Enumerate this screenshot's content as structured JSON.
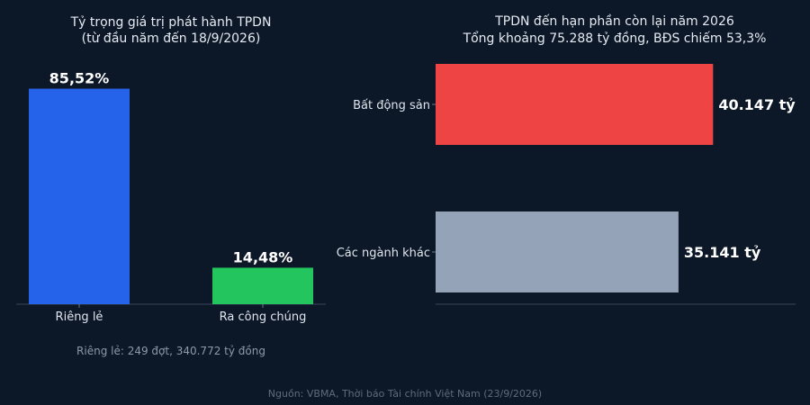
{
  "chart_data": [
    {
      "type": "bar",
      "title": [
        "Tỷ trọng giá trị phát hành TPDN",
        "(từ đầu năm đến 18/9/2026)"
      ],
      "categories": [
        "Riêng lẻ",
        "Ra công chúng"
      ],
      "values": [
        85.52,
        14.48
      ],
      "value_labels": [
        "85,52%",
        "14,48%"
      ],
      "colors": [
        "#2563eb",
        "#22c55e"
      ],
      "ylim": [
        0,
        100
      ],
      "note": "Riêng lẻ: 249 đợt, 340.772 tỷ đồng"
    },
    {
      "type": "bar",
      "orientation": "horizontal",
      "title": [
        "TPDN đến hạn phần còn lại năm 2026",
        "Tổng khoảng 75.288 tỷ đồng, BĐS chiếm 53,3%"
      ],
      "categories": [
        "Bất động sản",
        "Các ngành khác"
      ],
      "values": [
        40147,
        35141
      ],
      "value_labels": [
        "40.147 tỷ",
        "35.141 tỷ"
      ],
      "colors": [
        "#ef4444",
        "#94a3b8"
      ],
      "xlim": [
        0,
        50000
      ]
    }
  ],
  "source": "Nguồn: VBMA, Thời báo Tài chính Việt Nam (23/9/2026)"
}
